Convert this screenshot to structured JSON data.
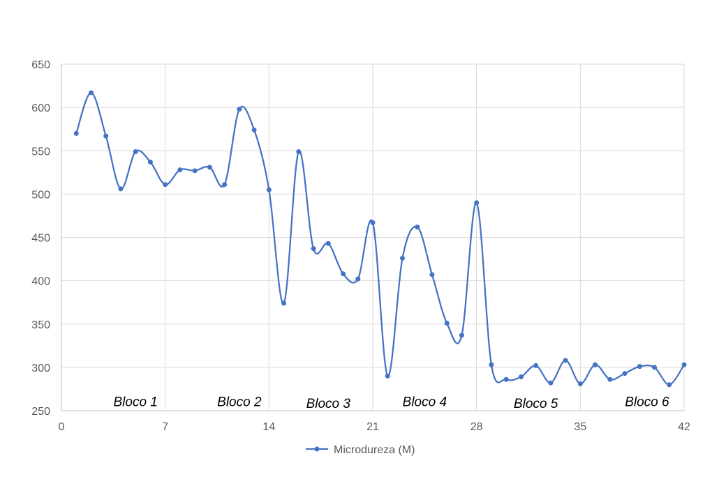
{
  "chart_data": {
    "type": "line",
    "smooth": true,
    "title": "",
    "xlabel": "",
    "ylabel": "",
    "xlim": [
      0,
      42
    ],
    "ylim": [
      250,
      650
    ],
    "x_ticks": [
      0,
      7,
      14,
      21,
      28,
      35,
      42
    ],
    "y_ticks": [
      250,
      300,
      350,
      400,
      450,
      500,
      550,
      600,
      650
    ],
    "grid": true,
    "legend_position": "bottom",
    "series": [
      {
        "name": "Microdureza (M)",
        "color": "#4472C4",
        "x": [
          1,
          2,
          3,
          4,
          5,
          6,
          7,
          8,
          9,
          10,
          11,
          12,
          13,
          14,
          15,
          16,
          17,
          18,
          19,
          20,
          21,
          22,
          23,
          24,
          25,
          26,
          27,
          28,
          29,
          30,
          31,
          32,
          33,
          34,
          35,
          36,
          37,
          38,
          39,
          40,
          41,
          42
        ],
        "y": [
          570,
          617,
          567,
          506,
          549,
          537,
          511,
          528,
          527,
          531,
          511,
          598,
          574,
          505,
          374,
          549,
          437,
          443,
          408,
          402,
          467,
          290,
          426,
          462,
          407,
          351,
          337,
          490,
          303,
          286,
          289,
          302,
          282,
          308,
          281,
          303,
          286,
          293,
          301,
          300,
          280,
          303
        ]
      }
    ],
    "annotations": [
      {
        "text": "Bloco 1",
        "x": 5,
        "y": 261
      },
      {
        "text": "Bloco 2",
        "x": 12,
        "y": 261
      },
      {
        "text": "Bloco 3",
        "x": 18,
        "y": 259
      },
      {
        "text": "Bloco 4",
        "x": 24.5,
        "y": 261
      },
      {
        "text": "Bloco 5",
        "x": 32,
        "y": 259
      },
      {
        "text": "Bloco 6",
        "x": 39.5,
        "y": 261
      }
    ]
  }
}
